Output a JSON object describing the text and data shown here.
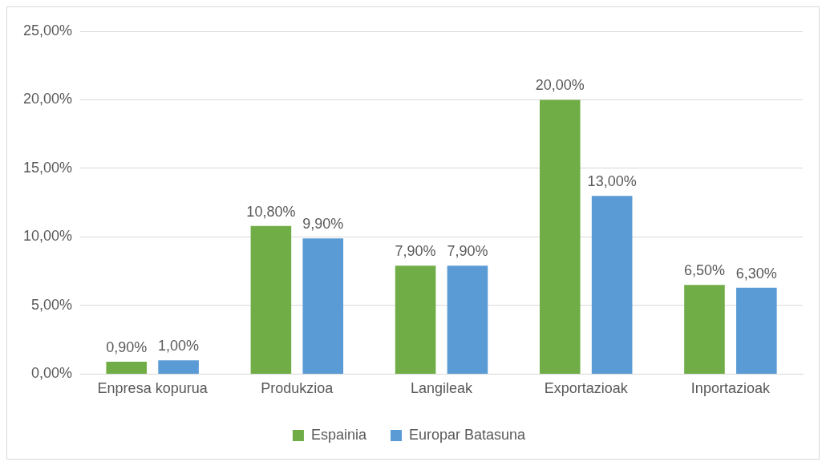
{
  "chart_data": {
    "type": "bar",
    "categories": [
      "Enpresa kopurua",
      "Produkzioa",
      "Langileak",
      "Exportazioak",
      "Inportazioak"
    ],
    "series": [
      {
        "name": "Espainia",
        "color": "#70ad47",
        "values": [
          0.9,
          10.8,
          7.9,
          20.0,
          6.5
        ],
        "value_labels": [
          "0,90%",
          "10,80%",
          "7,90%",
          "20,00%",
          "6,50%"
        ]
      },
      {
        "name": "Europar Batasuna",
        "color": "#5b9bd5",
        "values": [
          1.0,
          9.9,
          7.9,
          13.0,
          6.3
        ],
        "value_labels": [
          "1,00%",
          "9,90%",
          "7,90%",
          "13,00%",
          "6,30%"
        ]
      }
    ],
    "ylim": [
      0,
      25
    ],
    "yticks": [
      {
        "value": 0,
        "label": "0,00%"
      },
      {
        "value": 5,
        "label": "5,00%"
      },
      {
        "value": 10,
        "label": "10,00%"
      },
      {
        "value": 15,
        "label": "15,00%"
      },
      {
        "value": 20,
        "label": "20,00%"
      },
      {
        "value": 25,
        "label": "25,00%"
      }
    ],
    "grid": "y",
    "legend": "bottom"
  }
}
